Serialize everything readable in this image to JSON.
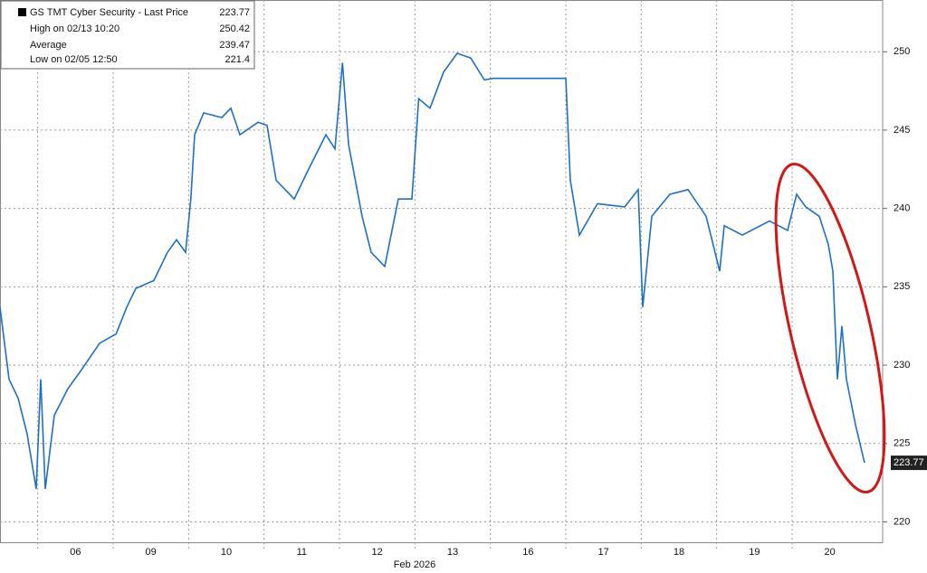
{
  "chart_data": {
    "type": "line",
    "legend_title": "GS TMT Cyber Security - Last Price",
    "last_price": 223.77,
    "stats": [
      {
        "label": "High on 02/13 10:20",
        "value": 250.42
      },
      {
        "label": "Average",
        "value": 239.47
      },
      {
        "label": "Low on 02/05 12:50",
        "value": 221.4
      }
    ],
    "x_label": "Feb 2026",
    "xlim": [
      0,
      11.7
    ],
    "xticks": [
      {
        "value": 1,
        "label": "06"
      },
      {
        "value": 2,
        "label": "09"
      },
      {
        "value": 3,
        "label": "10"
      },
      {
        "value": 4,
        "label": "11"
      },
      {
        "value": 5,
        "label": "12"
      },
      {
        "value": 6,
        "label": "13"
      },
      {
        "value": 7,
        "label": "16"
      },
      {
        "value": 8,
        "label": "17"
      },
      {
        "value": 9,
        "label": "18"
      },
      {
        "value": 10,
        "label": "19"
      },
      {
        "value": 11,
        "label": "20"
      }
    ],
    "ylim": [
      218.7,
      253.3
    ],
    "yticks": [
      220,
      225,
      230,
      235,
      240,
      245,
      250
    ],
    "grid": true,
    "series": [
      {
        "name": "GS TMT Cyber Security",
        "color": "#1f6fc5",
        "x": [
          0,
          0.12,
          0.24,
          0.36,
          0.48,
          0.54,
          0.6,
          0.72,
          0.9,
          1.08,
          1.32,
          1.54,
          1.68,
          1.8,
          2.04,
          2.22,
          2.34,
          2.46,
          2.53,
          2.58,
          2.7,
          2.94,
          3.06,
          3.18,
          3.42,
          3.54,
          3.66,
          3.9,
          4.08,
          4.32,
          4.44,
          4.54,
          4.62,
          4.8,
          4.92,
          5.1,
          5.28,
          5.46,
          5.55,
          5.7,
          5.88,
          6.06,
          6.24,
          6.42,
          6.54,
          7.5,
          7.56,
          7.68,
          7.92,
          8.28,
          8.46,
          8.52,
          8.64,
          8.88,
          9.12,
          9.36,
          9.54,
          9.6,
          9.84,
          10.2,
          10.44,
          10.56,
          10.68,
          10.86,
          10.98,
          11.04,
          11.1,
          11.16,
          11.22,
          11.34,
          11.46
        ],
        "values": [
          233.7,
          229.1,
          227.9,
          225.6,
          222.1,
          229.1,
          222.1,
          226.8,
          228.5,
          229.7,
          231.4,
          232.0,
          233.7,
          234.9,
          235.4,
          237.2,
          238.0,
          237.2,
          240.6,
          244.7,
          246.1,
          245.8,
          246.4,
          244.7,
          245.5,
          245.3,
          241.8,
          240.6,
          242.4,
          244.7,
          243.8,
          249.3,
          244.1,
          239.5,
          237.2,
          236.3,
          240.6,
          240.6,
          247.0,
          246.4,
          248.7,
          249.9,
          249.6,
          248.2,
          248.3,
          248.3,
          241.8,
          238.3,
          240.3,
          240.1,
          241.2,
          233.7,
          239.5,
          240.9,
          241.2,
          239.5,
          236.0,
          238.9,
          238.3,
          239.2,
          238.6,
          240.9,
          240.1,
          239.5,
          237.7,
          236.0,
          229.1,
          232.5,
          229.1,
          226.2,
          223.77
        ]
      }
    ]
  }
}
